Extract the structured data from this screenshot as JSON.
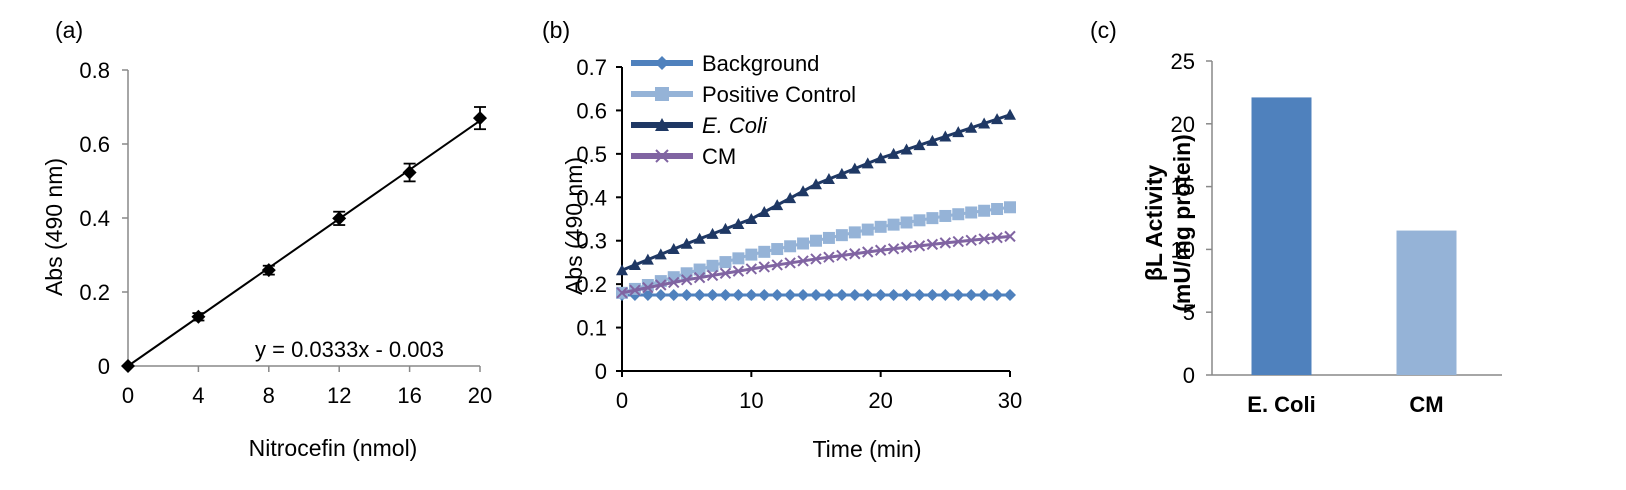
{
  "chart_data": [
    {
      "panel_label": "(a)",
      "type": "scatter",
      "xlabel": "Nitrocefin (nmol)",
      "ylabel": "Abs (490 nm)",
      "xlim": [
        0,
        20
      ],
      "ylim": [
        0,
        0.8
      ],
      "x_ticks": [
        "0",
        "4",
        "8",
        "12",
        "16",
        "20"
      ],
      "y_ticks": [
        "0",
        "0.2",
        "0.4",
        "0.6",
        "0.8"
      ],
      "annotation": "y = 0.0333x - 0.003",
      "trendline": {
        "slope": 0.0333,
        "intercept": -0.003
      },
      "series": [
        {
          "x": [
            0,
            4,
            8,
            12,
            16,
            20
          ],
          "y": [
            0,
            0.133,
            0.259,
            0.399,
            0.523,
            0.67
          ],
          "err": [
            0,
            0.01,
            0.012,
            0.018,
            0.024,
            0.03
          ],
          "color": "#000000",
          "marker": "diamond"
        }
      ],
      "grid": false
    },
    {
      "panel_label": "(b)",
      "type": "line",
      "xlabel": "Time (min)",
      "ylabel": "Abs (490 nm)",
      "xlim": [
        0,
        30
      ],
      "ylim": [
        0,
        0.7
      ],
      "x_ticks": [
        "0",
        "10",
        "20",
        "30"
      ],
      "y_ticks": [
        "0",
        "0.1",
        "0.2",
        "0.3",
        "0.4",
        "0.5",
        "0.6",
        "0.7"
      ],
      "legend_position": "top-left",
      "series": [
        {
          "name": "Background",
          "color": "#4f81bd",
          "marker": "diamond",
          "italic": false,
          "points": [
            [
              0,
              0.175
            ],
            [
              30,
              0.175
            ]
          ]
        },
        {
          "name": "Positive Control",
          "color": "#95b3d7",
          "marker": "square",
          "italic": false,
          "points": [
            [
              0,
              0.18
            ],
            [
              5,
              0.225
            ],
            [
              10,
              0.268
            ],
            [
              15,
              0.3
            ],
            [
              20,
              0.332
            ],
            [
              25,
              0.357
            ],
            [
              30,
              0.377
            ]
          ]
        },
        {
          "name": "E. Coli",
          "color": "#1f3864",
          "marker": "triangle",
          "italic": true,
          "points": [
            [
              0,
              0.232
            ],
            [
              5,
              0.293
            ],
            [
              10,
              0.35
            ],
            [
              15,
              0.43
            ],
            [
              20,
              0.49
            ],
            [
              25,
              0.54
            ],
            [
              30,
              0.59
            ]
          ]
        },
        {
          "name": "CM",
          "color": "#8064a2",
          "marker": "x",
          "italic": false,
          "points": [
            [
              0,
              0.18
            ],
            [
              5,
              0.21
            ],
            [
              10,
              0.235
            ],
            [
              15,
              0.258
            ],
            [
              20,
              0.278
            ],
            [
              25,
              0.295
            ],
            [
              30,
              0.31
            ]
          ]
        }
      ],
      "grid": false
    },
    {
      "panel_label": "(c)",
      "type": "bar",
      "ylabel": "βL Activity (mU/mg protein)",
      "ylabel_lines": [
        "βL Activity",
        "(mU/mg protein)"
      ],
      "categories": [
        "E. Coli",
        "CM"
      ],
      "values": [
        22.1,
        11.5
      ],
      "colors": [
        "#4f81bd",
        "#95b3d7"
      ],
      "ylim": [
        0,
        25
      ],
      "y_ticks": [
        "0",
        "5",
        "10",
        "15",
        "20",
        "25"
      ],
      "grid": false
    }
  ]
}
